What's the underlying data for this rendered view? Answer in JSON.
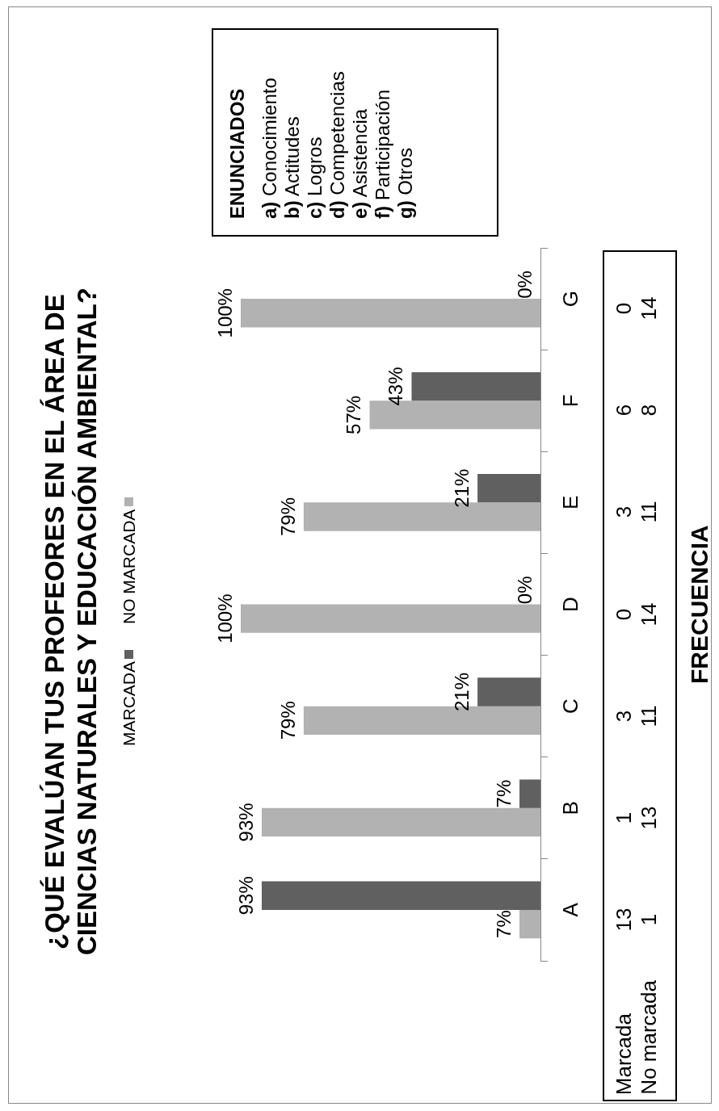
{
  "chart_data": {
    "type": "bar",
    "orientation": "horizontal",
    "title": "¿QUÉ EVALÚAN TUS PROFEORES EN EL ÁREA DE CIENCIAS NATURALES Y EDUCACIÓN AMBIENTAL?",
    "ylabel": "FRECUENCIA",
    "categories": [
      "G",
      "F",
      "E",
      "D",
      "C",
      "B",
      "A"
    ],
    "series": [
      {
        "name": "MARCADA",
        "color": "#606060",
        "values": [
          0,
          43,
          21,
          0,
          21,
          7,
          93
        ],
        "value_labels": [
          "0%",
          "43%",
          "21%",
          "0%",
          "21%",
          "7%",
          "93%"
        ]
      },
      {
        "name": "NO MARCADA",
        "color": "#b2b2b2",
        "values": [
          100,
          57,
          79,
          100,
          79,
          93,
          7
        ],
        "value_labels": [
          "100%",
          "57%",
          "79%",
          "100%",
          "79%",
          "93%",
          "7%"
        ]
      }
    ],
    "xlim": [
      100,
      0
    ],
    "tick_labels": "y",
    "grid": false,
    "legend": "left",
    "annotations": [
      "Marcada",
      "0",
      "6",
      "3",
      "0",
      "3",
      "1",
      "13",
      "No marcada",
      "14",
      "8",
      "11",
      "14",
      "11",
      "13",
      "1",
      "ENUNCIADOS",
      "a) Conocimiento",
      "b) Actitudes",
      "c) Logros",
      "d) Competencias",
      "e) Asistencia",
      "f) Participación",
      "g) Otros"
    ]
  }
}
